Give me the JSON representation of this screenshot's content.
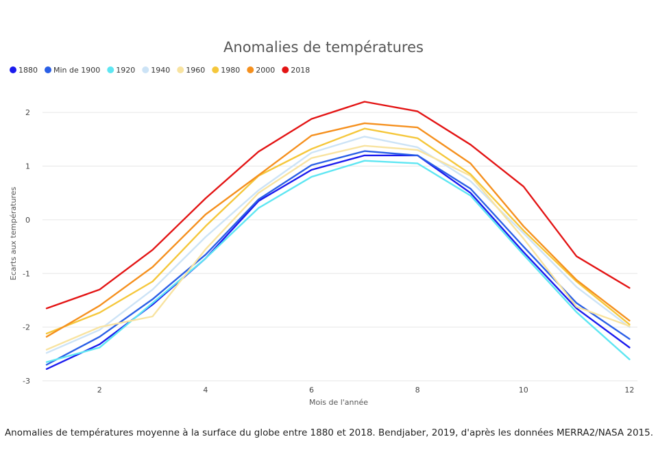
{
  "chart_data": {
    "type": "line",
    "title": "Anomalies de températures",
    "xlabel": "Mois de l'année",
    "ylabel": "Ecarts aux températures",
    "xlim": [
      1,
      12.15
    ],
    "ylim": [
      -3,
      2.5
    ],
    "x_ticks": [
      2,
      4,
      6,
      8,
      10,
      12
    ],
    "y_ticks": [
      -3,
      -2,
      -1,
      0,
      1,
      2
    ],
    "grid": "horizontal",
    "legend_position": "top-left",
    "x": [
      1,
      2,
      3,
      4,
      5,
      6,
      7,
      8,
      9,
      10,
      11,
      12
    ],
    "series": [
      {
        "name": "1880",
        "color": "#1a1aee",
        "values": [
          -2.78,
          -2.32,
          -1.58,
          -0.72,
          0.35,
          0.93,
          1.2,
          1.2,
          0.5,
          -0.6,
          -1.65,
          -2.38
        ]
      },
      {
        "name": "Min de 1900",
        "color": "#2a5fe6",
        "values": [
          -2.7,
          -2.18,
          -1.48,
          -0.65,
          0.38,
          1.02,
          1.28,
          1.2,
          0.58,
          -0.5,
          -1.55,
          -2.22
        ]
      },
      {
        "name": "1920",
        "color": "#5ee6f2",
        "values": [
          -2.65,
          -2.38,
          -1.55,
          -0.72,
          0.22,
          0.8,
          1.1,
          1.05,
          0.45,
          -0.65,
          -1.72,
          -2.6
        ]
      },
      {
        "name": "1940",
        "color": "#cce3f6",
        "values": [
          -2.48,
          -2.05,
          -1.3,
          -0.32,
          0.55,
          1.25,
          1.55,
          1.35,
          0.72,
          -0.25,
          -1.25,
          -2.0
        ]
      },
      {
        "name": "1960",
        "color": "#f8e3a0",
        "values": [
          -2.42,
          -2.0,
          -1.8,
          -0.55,
          0.5,
          1.15,
          1.38,
          1.3,
          0.82,
          -0.35,
          -1.62,
          -1.98
        ]
      },
      {
        "name": "1980",
        "color": "#f5c73b",
        "values": [
          -2.12,
          -1.73,
          -1.15,
          -0.12,
          0.82,
          1.32,
          1.7,
          1.52,
          0.85,
          -0.2,
          -1.15,
          -1.95
        ]
      },
      {
        "name": "2000",
        "color": "#f5901e",
        "values": [
          -2.18,
          -1.6,
          -0.88,
          0.1,
          0.83,
          1.57,
          1.8,
          1.72,
          1.05,
          -0.12,
          -1.12,
          -1.88
        ]
      },
      {
        "name": "2018",
        "color": "#e31414",
        "values": [
          -1.65,
          -1.3,
          -0.56,
          0.4,
          1.27,
          1.88,
          2.2,
          2.02,
          1.4,
          0.62,
          -0.68,
          -1.27
        ]
      }
    ]
  },
  "caption": "Anomalies de températures moyenne à la surface du globe entre 1880 et 2018. Bendjaber, 2019, d'après les données MERRA2/NASA 2015."
}
